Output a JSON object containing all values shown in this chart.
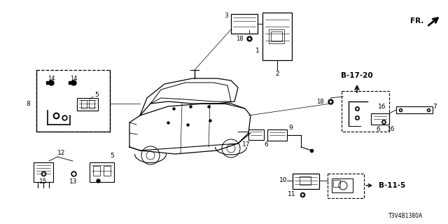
{
  "bg_color": "#ffffff",
  "diagram_code": "T3V4B1380A",
  "fr_label": "FR.",
  "ref_B1720": "B-17-20",
  "ref_B115": "B-11-5",
  "fig_w": 6.4,
  "fig_h": 3.2,
  "dpi": 100
}
